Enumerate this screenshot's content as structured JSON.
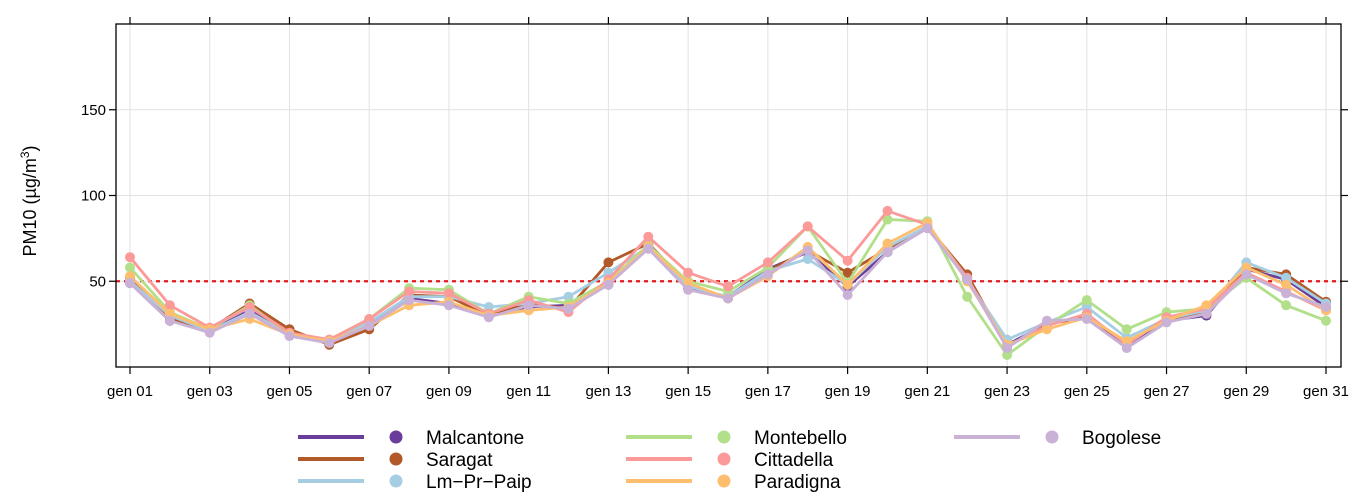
{
  "chart_data": {
    "type": "line",
    "title": "",
    "xlabel": "",
    "ylabel": "PM10 (µg/m",
    "ylabel_sup": "3",
    "ylabel_close": ")",
    "ylim": [
      0,
      200
    ],
    "xlim": [
      1,
      31
    ],
    "x": [
      1,
      2,
      3,
      4,
      5,
      6,
      7,
      8,
      9,
      10,
      11,
      12,
      13,
      14,
      15,
      16,
      17,
      18,
      19,
      20,
      21,
      22,
      23,
      24,
      25,
      26,
      27,
      28,
      29,
      30,
      31
    ],
    "x_ticks": [
      1,
      3,
      5,
      7,
      9,
      11,
      13,
      15,
      17,
      19,
      21,
      23,
      25,
      27,
      29,
      31
    ],
    "x_tick_labels": [
      "gen 01",
      "gen 03",
      "gen 05",
      "gen 07",
      "gen 09",
      "gen 11",
      "gen 13",
      "gen 15",
      "gen 17",
      "gen 19",
      "gen 21",
      "gen 23",
      "gen 25",
      "gen 27",
      "gen 29",
      "gen 31"
    ],
    "y_ticks": [
      50,
      100,
      150
    ],
    "y_tick_labels": [
      "50",
      "100",
      "150"
    ],
    "grid": true,
    "threshold": {
      "value": 50,
      "color": "#e41a1c",
      "style": "dashed"
    },
    "legend_placement": "bottom",
    "series": [
      {
        "name": "Malcantone",
        "color": "#6a3d9a",
        "values": [
          49,
          27,
          21,
          33,
          19,
          14,
          25,
          40,
          37,
          31,
          35,
          36,
          48,
          71,
          46,
          41,
          57,
          67,
          47,
          67,
          81,
          52,
          13,
          25,
          30,
          13,
          27,
          30,
          57,
          51,
          35
        ]
      },
      {
        "name": "Saragat",
        "color": "#b15928",
        "values": [
          52,
          28,
          22,
          37,
          22,
          13,
          22,
          42,
          41,
          30,
          37,
          34,
          61,
          72,
          48,
          40,
          56,
          68,
          55,
          69,
          82,
          54,
          12,
          25,
          29,
          14,
          28,
          31,
          58,
          54,
          38
        ]
      },
      {
        "name": "Lm−Pr−Paip",
        "color": "#a6cee3",
        "values": [
          50,
          30,
          21,
          32,
          19,
          15,
          26,
          41,
          41,
          35,
          37,
          41,
          55,
          70,
          47,
          41,
          56,
          63,
          48,
          70,
          82,
          51,
          16,
          26,
          35,
          17,
          28,
          33,
          61,
          52,
          37
        ]
      },
      {
        "name": "Montebello",
        "color": "#b2df8a",
        "values": [
          58,
          32,
          22,
          36,
          19,
          16,
          28,
          46,
          45,
          31,
          41,
          37,
          50,
          71,
          50,
          44,
          58,
          82,
          49,
          86,
          85,
          41,
          7,
          24,
          39,
          22,
          32,
          34,
          52,
          36,
          27
        ]
      },
      {
        "name": "Cittadella",
        "color": "#fb9a99",
        "values": [
          64,
          36,
          23,
          35,
          20,
          16,
          28,
          44,
          43,
          31,
          39,
          32,
          51,
          76,
          55,
          47,
          61,
          82,
          62,
          91,
          83,
          52,
          12,
          24,
          31,
          13,
          29,
          34,
          55,
          44,
          33
        ]
      },
      {
        "name": "Paradigna",
        "color": "#fdbf6f",
        "values": [
          53,
          31,
          22,
          28,
          19,
          15,
          24,
          36,
          38,
          30,
          33,
          35,
          49,
          70,
          49,
          40,
          53,
          70,
          48,
          72,
          84,
          50,
          13,
          22,
          29,
          15,
          27,
          36,
          58,
          48,
          33
        ]
      },
      {
        "name": "Bogolese",
        "color": "#cab2d6",
        "values": [
          49,
          27,
          20,
          31,
          18,
          14,
          24,
          39,
          36,
          29,
          36,
          34,
          48,
          69,
          45,
          40,
          54,
          68,
          42,
          67,
          81,
          51,
          11,
          27,
          28,
          11,
          26,
          31,
          54,
          43,
          35
        ]
      }
    ]
  }
}
